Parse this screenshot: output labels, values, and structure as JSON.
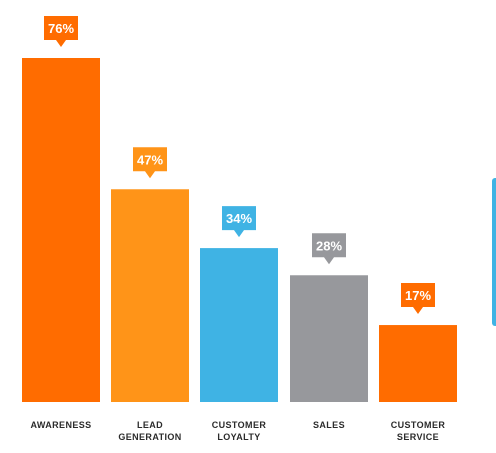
{
  "chart_data": {
    "type": "bar",
    "title": "",
    "xlabel": "",
    "ylabel": "",
    "ylim": [
      0,
      80
    ],
    "grid": false,
    "legend": "none",
    "categories": [
      [
        "AWARENESS"
      ],
      [
        "LEAD",
        "GENERATION"
      ],
      [
        "CUSTOMER",
        "LOYALTY"
      ],
      [
        "SALES"
      ],
      [
        "CUSTOMER",
        "SERVICE"
      ]
    ],
    "values": [
      76,
      47,
      34,
      28,
      17
    ],
    "value_labels": [
      "76%",
      "47%",
      "34%",
      "28%",
      "17%"
    ],
    "colors": [
      "#ff6c00",
      "#ff9418",
      "#3fb3e4",
      "#97989c",
      "#ff6c00"
    ],
    "label_color": "#2b2b2b",
    "callout_text_color": "#ffffff"
  }
}
